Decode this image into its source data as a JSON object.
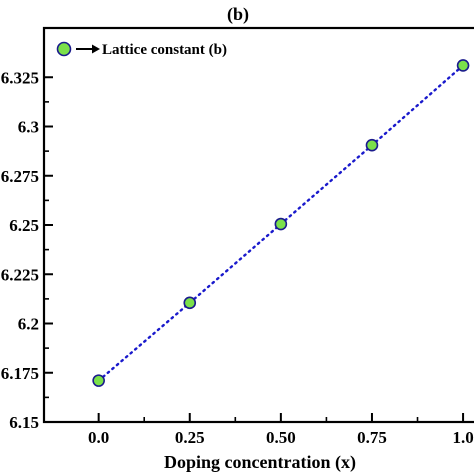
{
  "chart_data": {
    "type": "scatter",
    "panel_label": "(b)",
    "xlabel": "Doping concentration (x)",
    "ylabel": "",
    "x_tick_labels": [
      "0.0",
      "0.25",
      "0.50",
      "0.75",
      "1.0"
    ],
    "x_ticks": [
      0.0,
      0.25,
      0.5,
      0.75,
      1.0
    ],
    "y_tick_labels": [
      "6.15",
      "6.175",
      "6.2",
      "6.225",
      "6.25",
      "6.275",
      "6.3",
      "6.325"
    ],
    "y_ticks": [
      6.15,
      6.175,
      6.2,
      6.225,
      6.25,
      6.275,
      6.3,
      6.325
    ],
    "xlim": [
      -0.15,
      1.03
    ],
    "ylim": [
      6.15,
      6.35
    ],
    "series": [
      {
        "name": "Lattice constant (b)",
        "x": [
          0.0,
          0.25,
          0.5,
          0.75,
          1.0
        ],
        "y": [
          6.171,
          6.2105,
          6.2505,
          6.2905,
          6.331
        ],
        "marker_fill": "#7be04a",
        "marker_edge": "#1a1a8c",
        "line_color": "#1a1acc",
        "line_style": "dotted"
      }
    ],
    "legend": {
      "position": "top-left",
      "arrow": true
    },
    "grid": false
  }
}
